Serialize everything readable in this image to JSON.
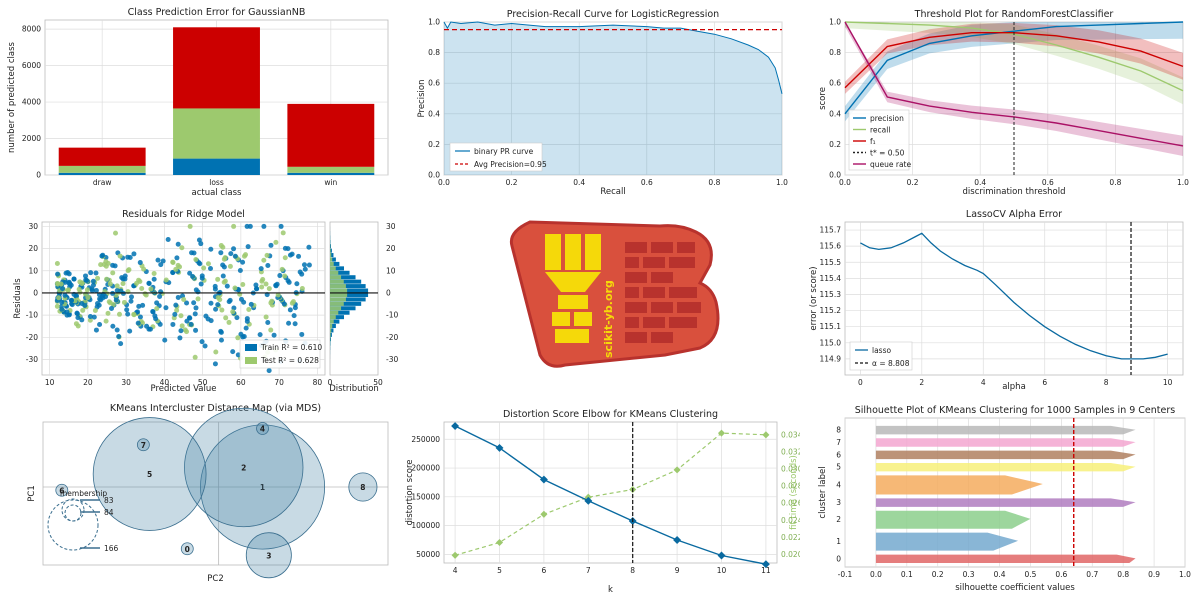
{
  "chart_data": [
    {
      "id": "class_prediction_error",
      "type": "bar",
      "title": "Class Prediction Error for GaussianNB",
      "xlabel": "actual class",
      "ylabel": "number of predicted class",
      "categories": [
        "draw",
        "loss",
        "win"
      ],
      "stacked": true,
      "ylim": [
        0,
        8500
      ],
      "yticks": [
        0,
        2000,
        4000,
        6000,
        8000
      ],
      "series": [
        {
          "color": "#0072b2",
          "values": [
            120,
            900,
            120
          ]
        },
        {
          "color": "#9dc96e",
          "values": [
            380,
            2750,
            330
          ]
        },
        {
          "color": "#cc0000",
          "values": [
            1000,
            4450,
            3450
          ]
        }
      ]
    },
    {
      "id": "precision_recall",
      "type": "area",
      "title": "Precision-Recall Curve for LogisticRegression",
      "xlabel": "Recall",
      "ylabel": "Precision",
      "xlim": [
        0,
        1
      ],
      "ylim": [
        0,
        1
      ],
      "xticks": [
        0.0,
        0.2,
        0.4,
        0.6,
        0.8,
        1.0
      ],
      "yticks": [
        0.0,
        0.2,
        0.4,
        0.6,
        0.8,
        1.0
      ],
      "avg_precision": 0.95,
      "legend": [
        "binary PR curve",
        "Avg Precision=0.95"
      ],
      "legend_position": "lower-left",
      "x": [
        0,
        0.01,
        0.02,
        0.05,
        0.1,
        0.15,
        0.2,
        0.3,
        0.4,
        0.5,
        0.6,
        0.65,
        0.7,
        0.75,
        0.8,
        0.85,
        0.9,
        0.93,
        0.96,
        0.98,
        0.99,
        1.0
      ],
      "y": [
        1.0,
        0.96,
        1.0,
        0.99,
        1.0,
        0.98,
        0.99,
        0.97,
        0.97,
        0.98,
        0.97,
        0.96,
        0.96,
        0.94,
        0.92,
        0.89,
        0.85,
        0.82,
        0.77,
        0.7,
        0.62,
        0.53
      ]
    },
    {
      "id": "threshold_plot",
      "type": "line",
      "title": "Threshold Plot for RandomForestClassifier",
      "xlabel": "discrimination threshold",
      "ylabel": "score",
      "xlim": [
        0,
        1
      ],
      "ylim": [
        0,
        1
      ],
      "xticks": [
        0.0,
        0.2,
        0.4,
        0.6,
        0.8,
        1.0
      ],
      "yticks": [
        0.0,
        0.2,
        0.4,
        0.6,
        0.8,
        1.0
      ],
      "threshold": 0.5,
      "legend": [
        "precision",
        "recall",
        "f₁",
        "t* = 0.50",
        "queue rate"
      ],
      "legend_position": "lower-left",
      "x": [
        0,
        0.125,
        0.25,
        0.375,
        0.5,
        0.625,
        0.75,
        0.875,
        1.0
      ],
      "series": [
        {
          "name": "precision",
          "color": "#0072b2",
          "values": [
            0.4,
            0.75,
            0.86,
            0.91,
            0.94,
            0.97,
            0.98,
            0.99,
            1.0
          ]
        },
        {
          "name": "recall",
          "color": "#9dc96e",
          "values": [
            1.0,
            0.99,
            0.98,
            0.96,
            0.92,
            0.85,
            0.77,
            0.68,
            0.55
          ]
        },
        {
          "name": "f₁",
          "color": "#cc0000",
          "values": [
            0.57,
            0.84,
            0.9,
            0.93,
            0.93,
            0.91,
            0.87,
            0.81,
            0.71
          ]
        },
        {
          "name": "queue rate",
          "color": "#aa1166",
          "values": [
            1.0,
            0.51,
            0.45,
            0.41,
            0.38,
            0.34,
            0.29,
            0.24,
            0.19
          ]
        }
      ]
    },
    {
      "id": "residuals",
      "type": "scatter",
      "title": "Residuals for Ridge Model",
      "xlabel": "Predicted Value",
      "ylabel": "Residuals",
      "hist_xlabel": "Distribution",
      "xlim": [
        8,
        82
      ],
      "ylim": [
        -37,
        32
      ],
      "xticks": [
        10,
        20,
        30,
        40,
        50,
        60,
        70,
        80
      ],
      "yticks": [
        -30,
        -20,
        -10,
        0,
        10,
        20,
        30
      ],
      "hist_xticks": [
        0,
        50
      ],
      "legend": [
        "Train R² = 0.610",
        "Test R² = 0.628"
      ],
      "legend_position": "lower-right",
      "train_color": "#0072b2",
      "test_color": "#9dc96e"
    },
    {
      "id": "lassocv",
      "type": "line",
      "title": "LassoCV Alpha Error",
      "xlabel": "alpha",
      "ylabel": "error (or score)",
      "xlim": [
        -0.5,
        10.5
      ],
      "ylim": [
        114.8,
        115.75
      ],
      "xticks": [
        0,
        2,
        4,
        6,
        8,
        10
      ],
      "yticks": [
        114.9,
        115.0,
        115.1,
        115.2,
        115.3,
        115.4,
        115.5,
        115.6,
        115.7
      ],
      "alpha": 8.808,
      "legend": [
        "lasso",
        "α = 8.808"
      ],
      "legend_position": "lower-left",
      "x": [
        0,
        0.3,
        0.6,
        1.0,
        1.4,
        1.8,
        2.0,
        2.3,
        2.6,
        3.0,
        3.4,
        3.8,
        4.0,
        4.4,
        5.0,
        5.5,
        6.0,
        6.5,
        7.0,
        7.5,
        8.0,
        8.5,
        8.808,
        9.2,
        9.6,
        10.0
      ],
      "y": [
        115.62,
        115.59,
        115.58,
        115.59,
        115.62,
        115.66,
        115.68,
        115.62,
        115.57,
        115.52,
        115.48,
        115.45,
        115.43,
        115.36,
        115.25,
        115.17,
        115.1,
        115.04,
        114.99,
        114.95,
        114.92,
        114.9,
        114.9,
        114.9,
        114.91,
        114.93
      ]
    },
    {
      "id": "intercluster",
      "type": "scatter",
      "title": "KMeans Intercluster Distance Map (via MDS)",
      "xlabel": "PC2",
      "ylabel": "PC1",
      "legend_title": "membership",
      "legend_values": [
        "83",
        "84",
        "166"
      ],
      "clusters": [
        {
          "label": "0",
          "x": 0.3,
          "y": -1.9,
          "r": 0.1
        },
        {
          "label": "1",
          "x": 1.5,
          "y": 0.0,
          "r": 1.1
        },
        {
          "label": "2",
          "x": 1.2,
          "y": 0.6,
          "r": 1.05
        },
        {
          "label": "3",
          "x": 1.6,
          "y": -2.1,
          "r": 0.4
        },
        {
          "label": "4",
          "x": 1.5,
          "y": 1.8,
          "r": 0.1
        },
        {
          "label": "5",
          "x": -0.3,
          "y": 0.4,
          "r": 1.0
        },
        {
          "label": "6",
          "x": -1.7,
          "y": -0.1,
          "r": 0.1
        },
        {
          "label": "7",
          "x": -0.4,
          "y": 1.3,
          "r": 0.1
        },
        {
          "label": "8",
          "x": 3.1,
          "y": 0.0,
          "r": 0.25
        }
      ]
    },
    {
      "id": "elbow",
      "type": "line",
      "title": "Distortion Score Elbow for KMeans Clustering",
      "xlabel": "k",
      "ylabel": "distortion score",
      "y2label": "fit time (seconds)",
      "xlim": [
        3.75,
        11.25
      ],
      "ylim": [
        35000,
        280000
      ],
      "y2lim": [
        0.019,
        0.0355
      ],
      "xticks": [
        4,
        5,
        6,
        7,
        8,
        9,
        10,
        11
      ],
      "yticks": [
        50000,
        100000,
        150000,
        200000,
        250000
      ],
      "y2ticks": [
        0.02,
        0.022,
        0.024,
        0.026,
        0.028,
        0.03,
        0.032,
        0.034
      ],
      "elbow_k": 8,
      "x": [
        4,
        5,
        6,
        7,
        8,
        9,
        10,
        11
      ],
      "series": [
        {
          "color": "#0a6aa0",
          "values": [
            273000,
            235000,
            180000,
            143000,
            108000,
            75000,
            48000,
            33000
          ]
        },
        {
          "color": "#9dc96e",
          "values": [
            0.0199,
            0.0214,
            0.0247,
            0.0267,
            0.0276,
            0.0299,
            0.0342,
            0.034
          ]
        }
      ]
    },
    {
      "id": "silhouette",
      "type": "area",
      "title": "Silhouette Plot of KMeans Clustering for 1000 Samples in 9 Centers",
      "xlabel": "silhouette coefficient values",
      "ylabel": "cluster label",
      "xlim": [
        -0.1,
        1.0
      ],
      "xticks": [
        -0.1,
        0.0,
        0.1,
        0.2,
        0.3,
        0.4,
        0.5,
        0.6,
        0.7,
        0.8,
        0.9,
        1.0
      ],
      "avg_score": 0.64,
      "clusters": [
        {
          "label": "0",
          "color": "#e06666",
          "max": 0.84,
          "bulk": 0.82
        },
        {
          "label": "1",
          "color": "#74a9cf",
          "max": 0.46,
          "bulk": 0.38
        },
        {
          "label": "2",
          "color": "#8ccf8c",
          "max": 0.5,
          "bulk": 0.44
        },
        {
          "label": "3",
          "color": "#b07cbf",
          "max": 0.84,
          "bulk": 0.8
        },
        {
          "label": "4",
          "color": "#f5ab5e",
          "max": 0.54,
          "bulk": 0.44
        },
        {
          "label": "5",
          "color": "#f7f07a",
          "max": 0.84,
          "bulk": 0.8
        },
        {
          "label": "6",
          "color": "#b08060",
          "max": 0.84,
          "bulk": 0.8
        },
        {
          "label": "7",
          "color": "#f3a6d0",
          "max": 0.84,
          "bulk": 0.8
        },
        {
          "label": "8",
          "color": "#b8b8b8",
          "max": 0.84,
          "bulk": 0.8
        }
      ]
    }
  ],
  "logo": {
    "text": "scikit-yb.org",
    "bg_color": "#d9503d",
    "accent_color": "#f5d90a",
    "brick_color": "#b8322d"
  }
}
